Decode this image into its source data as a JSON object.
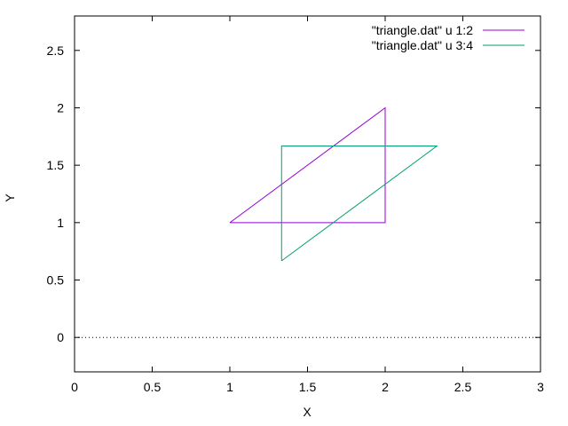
{
  "chart_data": {
    "type": "line",
    "xlabel": "X",
    "ylabel": "Y",
    "xlim": [
      0,
      3
    ],
    "ylim": [
      -0.3,
      2.8
    ],
    "xticks": [
      0,
      0.5,
      1,
      1.5,
      2,
      2.5,
      3
    ],
    "xtick_labels": [
      "0",
      "0.5",
      "1",
      "1.5",
      "2",
      "2.5",
      "3"
    ],
    "yticks": [
      0,
      0.5,
      1,
      1.5,
      2,
      2.5
    ],
    "ytick_labels": [
      "0",
      "0.5",
      "1",
      "1.5",
      "2",
      "2.5"
    ],
    "grid": false,
    "legend_position": "top-right",
    "zero_line": {
      "y": 0,
      "style": "dotted"
    },
    "series": [
      {
        "name": "\"triangle.dat\" u 1:2",
        "color": "#9400d3",
        "x": [
          1,
          2,
          2,
          1
        ],
        "y": [
          1,
          2,
          1,
          1
        ]
      },
      {
        "name": "\"triangle.dat\" u 3:4",
        "color": "#009e73",
        "x": [
          1.333,
          2.333,
          1.333,
          1.333
        ],
        "y": [
          0.667,
          1.667,
          1.667,
          0.667
        ]
      }
    ]
  }
}
